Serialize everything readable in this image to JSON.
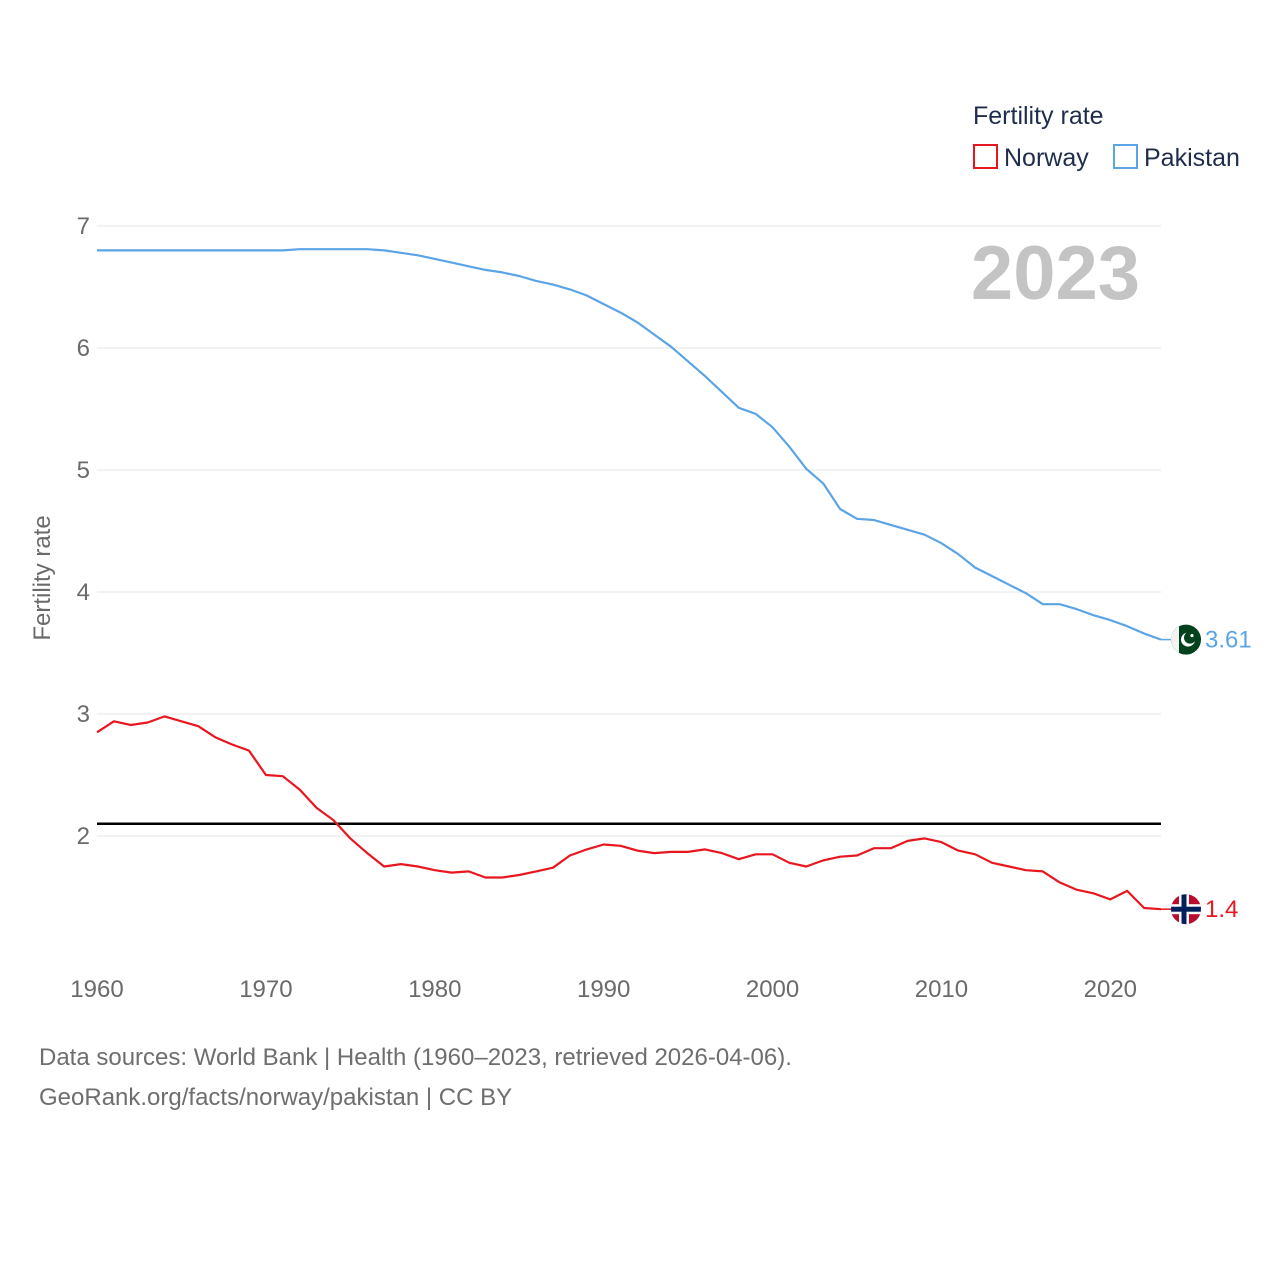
{
  "chart_data": {
    "type": "line",
    "legend_title": "Fertility rate",
    "ylabel": "Fertility rate",
    "year_label": "2023",
    "xlim": [
      1960,
      2023
    ],
    "ylim": [
      1,
      7
    ],
    "yticks": [
      2,
      3,
      4,
      5,
      6,
      7
    ],
    "xticks": [
      1960,
      1970,
      1980,
      1990,
      2000,
      2010,
      2020
    ],
    "reference_line": 2.1,
    "x": [
      1960,
      1961,
      1962,
      1963,
      1964,
      1965,
      1966,
      1967,
      1968,
      1969,
      1970,
      1971,
      1972,
      1973,
      1974,
      1975,
      1976,
      1977,
      1978,
      1979,
      1980,
      1981,
      1982,
      1983,
      1984,
      1985,
      1986,
      1987,
      1988,
      1989,
      1990,
      1991,
      1992,
      1993,
      1994,
      1995,
      1996,
      1997,
      1998,
      1999,
      2000,
      2001,
      2002,
      2003,
      2004,
      2005,
      2006,
      2007,
      2008,
      2009,
      2010,
      2011,
      2012,
      2013,
      2014,
      2015,
      2016,
      2017,
      2018,
      2019,
      2020,
      2021,
      2022,
      2023
    ],
    "series": [
      {
        "name": "Norway",
        "color": "#e8171f",
        "end_label": "1.4",
        "values": [
          2.85,
          2.94,
          2.91,
          2.93,
          2.98,
          2.94,
          2.9,
          2.81,
          2.75,
          2.7,
          2.5,
          2.49,
          2.38,
          2.23,
          2.13,
          1.98,
          1.86,
          1.75,
          1.77,
          1.75,
          1.72,
          1.7,
          1.71,
          1.66,
          1.66,
          1.68,
          1.71,
          1.74,
          1.84,
          1.89,
          1.93,
          1.92,
          1.88,
          1.86,
          1.87,
          1.87,
          1.89,
          1.86,
          1.81,
          1.85,
          1.85,
          1.78,
          1.75,
          1.8,
          1.83,
          1.84,
          1.9,
          1.9,
          1.96,
          1.98,
          1.95,
          1.88,
          1.85,
          1.78,
          1.75,
          1.72,
          1.71,
          1.62,
          1.56,
          1.53,
          1.48,
          1.55,
          1.41,
          1.4
        ]
      },
      {
        "name": "Pakistan",
        "color": "#5ba4e6",
        "end_label": "3.61",
        "values": [
          6.8,
          6.8,
          6.8,
          6.8,
          6.8,
          6.8,
          6.8,
          6.8,
          6.8,
          6.8,
          6.8,
          6.8,
          6.81,
          6.81,
          6.81,
          6.81,
          6.81,
          6.8,
          6.78,
          6.76,
          6.73,
          6.7,
          6.67,
          6.64,
          6.62,
          6.59,
          6.55,
          6.52,
          6.48,
          6.43,
          6.36,
          6.29,
          6.21,
          6.11,
          6.01,
          5.89,
          5.77,
          5.64,
          5.51,
          5.46,
          5.35,
          5.19,
          5.01,
          4.89,
          4.68,
          4.6,
          4.59,
          4.55,
          4.51,
          4.47,
          4.4,
          4.31,
          4.2,
          4.13,
          4.06,
          3.99,
          3.9,
          3.9,
          3.86,
          3.81,
          3.77,
          3.72,
          3.66,
          3.61
        ]
      }
    ]
  },
  "footer": {
    "line1": "Data sources: World Bank | Health (1960–2023, retrieved 2026-04-06).",
    "line2": "GeoRank.org/facts/norway/pakistan | CC BY"
  }
}
